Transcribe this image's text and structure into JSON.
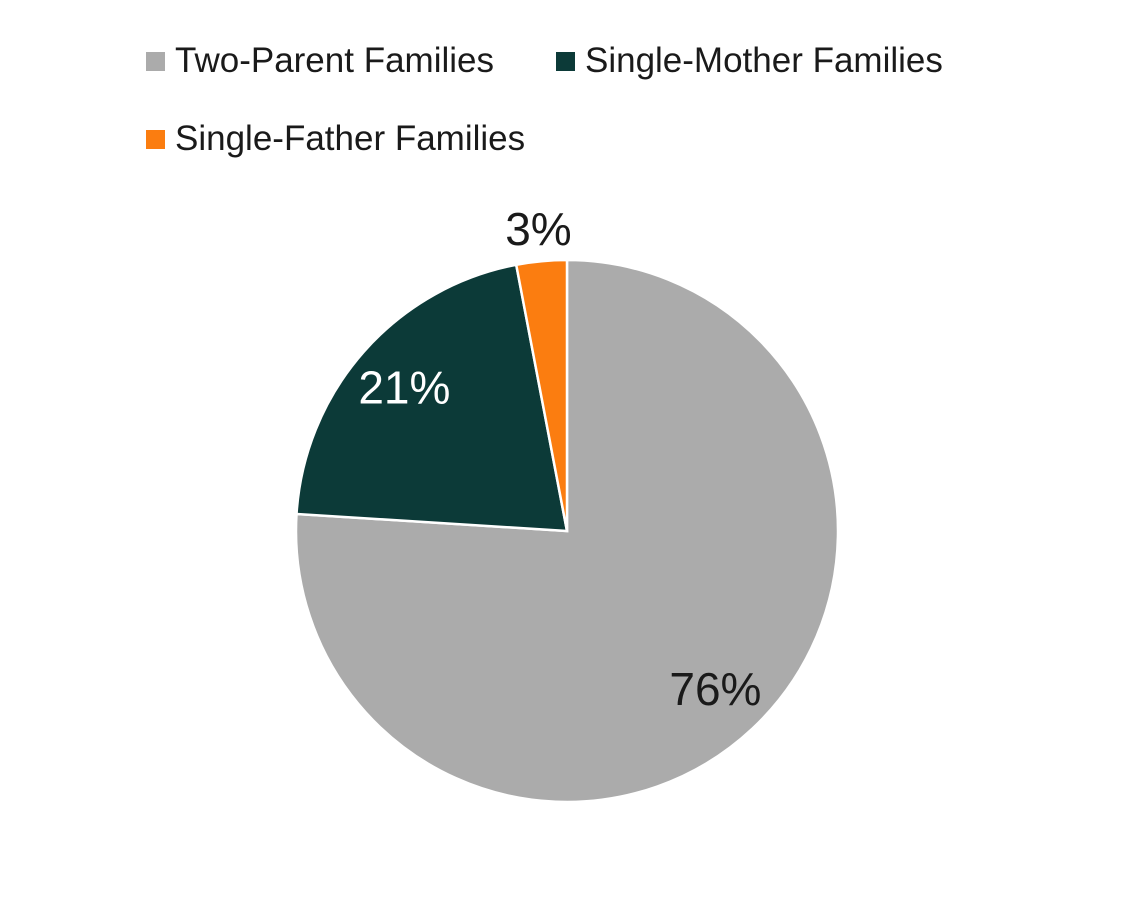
{
  "chart_data": {
    "type": "pie",
    "title": "",
    "legend_position": "top-left",
    "direction": "clockwise",
    "start_angle_deg": 0,
    "data_labels": "percent",
    "background_color": "#ffffff",
    "separator_color": "#ffffff",
    "categories": [
      "Two-Parent Families",
      "Single-Mother Families",
      "Single-Father Families"
    ],
    "values": [
      76,
      21,
      3
    ],
    "slices": [
      {
        "label": "Two-Parent Families",
        "value": 76,
        "label_text": "76%",
        "color": "#ABABAB",
        "label_color": "#1a1a1a",
        "label_placement": "inside"
      },
      {
        "label": "Single-Mother Families",
        "value": 21,
        "label_text": "21%",
        "color": "#0C3A38",
        "label_color": "#ffffff",
        "label_placement": "inside"
      },
      {
        "label": "Single-Father Families",
        "value": 3,
        "label_text": "3%",
        "color": "#FB7D10",
        "label_color": "#1a1a1a",
        "label_placement": "outside"
      }
    ]
  }
}
